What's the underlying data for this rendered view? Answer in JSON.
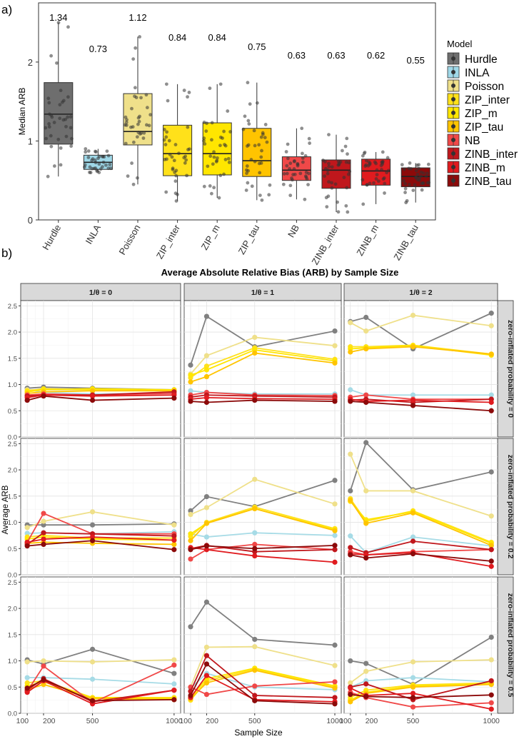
{
  "panel_a_label": "a)",
  "panel_b_label": "b)",
  "chart_data": [
    {
      "type": "box",
      "ylabel": "Median ARB",
      "ylim": [
        0,
        2.75
      ],
      "yticks": [
        0,
        1,
        2
      ],
      "legend_title": "Model",
      "legend_placement": "right",
      "grid": false,
      "categories": [
        "Hurdle",
        "INLA",
        "Poisson",
        "ZIP_inter",
        "ZIP_m",
        "ZIP_tau",
        "NB",
        "ZINB_inter",
        "ZINB_m",
        "ZINB_tau"
      ],
      "colors": [
        "#6e6e6e",
        "#9fd8e8",
        "#efe08a",
        "#ffe11a",
        "#ffe600",
        "#ffc400",
        "#f04848",
        "#c0171c",
        "#e01b1f",
        "#8c0a0a"
      ],
      "annotations": [
        "1.34",
        "0.73",
        "1.12",
        "0.84",
        "0.84",
        "0.75",
        "0.63",
        "0.63",
        "0.62",
        "0.55"
      ],
      "box_stats": [
        {
          "min": 0.55,
          "q1": 0.96,
          "median": 1.34,
          "q3": 1.74,
          "max": 2.5
        },
        {
          "min": 0.6,
          "q1": 0.64,
          "median": 0.73,
          "q3": 0.82,
          "max": 0.9
        },
        {
          "min": 0.45,
          "q1": 0.95,
          "median": 1.12,
          "q3": 1.6,
          "max": 2.32
        },
        {
          "min": 0.24,
          "q1": 0.56,
          "median": 0.84,
          "q3": 1.2,
          "max": 1.72
        },
        {
          "min": 0.28,
          "q1": 0.57,
          "median": 0.84,
          "q3": 1.23,
          "max": 1.72
        },
        {
          "min": 0.25,
          "q1": 0.55,
          "median": 0.75,
          "q3": 1.16,
          "max": 1.74
        },
        {
          "min": 0.26,
          "q1": 0.5,
          "median": 0.63,
          "q3": 0.8,
          "max": 1.16
        },
        {
          "min": 0.1,
          "q1": 0.4,
          "median": 0.63,
          "q3": 0.76,
          "max": 1.08
        },
        {
          "min": 0.2,
          "q1": 0.44,
          "median": 0.62,
          "q3": 0.77,
          "max": 0.86
        },
        {
          "min": 0.22,
          "q1": 0.42,
          "median": 0.55,
          "q3": 0.66,
          "max": 0.72
        }
      ]
    },
    {
      "type": "line",
      "title": "Average Absolute Relative Bias (ARB) by Sample Size",
      "xlabel": "Sample Size",
      "ylabel": "Average ARB",
      "x": [
        100,
        200,
        500,
        1000
      ],
      "xticks": [
        100,
        200,
        500,
        1000
      ],
      "yticks": [
        0.0,
        0.5,
        1.0,
        1.5,
        2.0,
        2.5
      ],
      "yticklabels": [
        "0.0",
        "0.5",
        "1.0",
        "1.5",
        "2.0",
        "2.5"
      ],
      "ylim": [
        0,
        2.6
      ],
      "grid": true,
      "col_labels": [
        "1/θ = 0",
        "1/θ = 1",
        "1/θ = 2"
      ],
      "row_labels": [
        "zero-inflated probability = 0",
        "zero-inflated probability = 0.2",
        "zero-inflated probability = 0.5"
      ],
      "series_colors": [
        "#808080",
        "#a6dbe6",
        "#efe08a",
        "#ffe11a",
        "#ffe600",
        "#ffc400",
        "#f04848",
        "#c0171c",
        "#e01b1f",
        "#8c0a0a"
      ],
      "panels": [
        [
          [
            [
              0.93,
              0.95,
              0.93,
              0.9
            ],
            [
              0.9,
              0.85,
              0.82,
              0.83
            ],
            [
              0.9,
              0.9,
              0.9,
              0.88
            ],
            [
              0.88,
              0.92,
              0.9,
              0.88
            ],
            [
              0.86,
              0.9,
              0.92,
              0.9
            ],
            [
              0.83,
              0.86,
              0.88,
              0.88
            ],
            [
              0.8,
              0.82,
              0.8,
              0.83
            ],
            [
              0.78,
              0.8,
              0.8,
              0.86
            ],
            [
              0.75,
              0.8,
              0.78,
              0.8
            ],
            [
              0.7,
              0.78,
              0.7,
              0.74
            ]
          ],
          [
            [
              1.37,
              2.3,
              1.72,
              2.02
            ],
            [
              0.88,
              0.85,
              0.82,
              0.82
            ],
            [
              1.2,
              1.55,
              1.9,
              1.74
            ],
            [
              1.13,
              1.35,
              1.7,
              1.48
            ],
            [
              1.18,
              1.28,
              1.66,
              1.45
            ],
            [
              1.05,
              1.15,
              1.6,
              1.41
            ],
            [
              0.8,
              0.85,
              0.8,
              0.79
            ],
            [
              0.76,
              0.8,
              0.78,
              0.76
            ],
            [
              0.72,
              0.75,
              0.73,
              0.72
            ],
            [
              0.68,
              0.66,
              0.7,
              0.68
            ]
          ],
          [
            [
              2.2,
              2.28,
              1.68,
              2.36
            ],
            [
              0.9,
              0.8,
              0.8,
              0.8
            ],
            [
              2.18,
              2.02,
              2.32,
              2.12
            ],
            [
              1.72,
              1.72,
              1.75,
              1.58
            ],
            [
              1.68,
              1.7,
              1.74,
              1.56
            ],
            [
              1.62,
              1.68,
              1.72,
              1.58
            ],
            [
              0.76,
              0.8,
              0.72,
              0.72
            ],
            [
              0.7,
              0.72,
              0.66,
              0.72
            ],
            [
              0.72,
              0.68,
              0.7,
              0.66
            ],
            [
              0.68,
              0.66,
              0.6,
              0.5
            ]
          ]
        ],
        [
          [
            [
              0.95,
              0.95,
              0.95,
              0.97
            ],
            [
              0.79,
              0.8,
              0.78,
              0.82
            ],
            [
              0.9,
              1.02,
              1.2,
              0.95
            ],
            [
              0.72,
              0.75,
              0.7,
              0.7
            ],
            [
              0.68,
              0.72,
              0.68,
              0.66
            ],
            [
              0.6,
              0.62,
              0.6,
              0.58
            ],
            [
              0.62,
              1.17,
              0.78,
              0.78
            ],
            [
              0.58,
              0.8,
              0.78,
              0.74
            ],
            [
              0.62,
              0.68,
              0.72,
              0.66
            ],
            [
              0.55,
              0.58,
              0.65,
              0.48
            ]
          ],
          [
            [
              1.22,
              1.49,
              1.3,
              1.8
            ],
            [
              0.78,
              0.72,
              0.8,
              0.75
            ],
            [
              1.15,
              1.28,
              1.82,
              1.35
            ],
            [
              0.73,
              1.0,
              1.29,
              0.88
            ],
            [
              0.78,
              0.98,
              1.26,
              0.86
            ],
            [
              0.65,
              0.98,
              1.26,
              0.84
            ],
            [
              0.3,
              0.48,
              0.58,
              0.48
            ],
            [
              0.5,
              0.56,
              0.44,
              0.48
            ],
            [
              0.52,
              0.48,
              0.36,
              0.24
            ],
            [
              0.48,
              0.55,
              0.5,
              0.56
            ]
          ],
          [
            [
              1.6,
              2.52,
              1.62,
              1.96
            ],
            [
              0.74,
              0.42,
              0.72,
              0.55
            ],
            [
              2.3,
              1.6,
              1.6,
              1.12
            ],
            [
              1.45,
              1.02,
              1.22,
              0.62
            ],
            [
              1.4,
              1.05,
              1.2,
              0.6
            ],
            [
              1.42,
              0.98,
              1.18,
              0.56
            ],
            [
              0.44,
              0.38,
              0.44,
              0.48
            ],
            [
              0.52,
              0.42,
              0.64,
              0.48
            ],
            [
              0.4,
              0.38,
              0.42,
              0.16
            ],
            [
              0.38,
              0.32,
              0.4,
              0.26
            ]
          ]
        ],
        [
          [
            [
              1.02,
              0.94,
              1.22,
              0.76
            ],
            [
              0.68,
              0.68,
              0.65,
              0.56
            ],
            [
              0.98,
              1.0,
              0.98,
              1.02
            ],
            [
              0.58,
              0.62,
              0.3,
              0.3
            ],
            [
              0.52,
              0.6,
              0.3,
              0.28
            ],
            [
              0.45,
              0.55,
              0.28,
              0.26
            ],
            [
              0.42,
              0.9,
              0.2,
              0.92
            ],
            [
              0.44,
              0.66,
              0.22,
              0.44
            ],
            [
              0.4,
              0.62,
              0.18,
              0.44
            ],
            [
              0.48,
              0.64,
              0.24,
              0.26
            ]
          ],
          [
            [
              1.65,
              2.12,
              1.41,
              1.3
            ],
            [
              0.48,
              0.76,
              0.5,
              0.45
            ],
            [
              0.5,
              1.26,
              1.27,
              0.91
            ],
            [
              0.25,
              0.62,
              0.84,
              0.5
            ],
            [
              0.3,
              0.66,
              0.86,
              0.52
            ],
            [
              0.28,
              0.58,
              0.82,
              0.48
            ],
            [
              0.5,
              0.36,
              0.52,
              0.6
            ],
            [
              0.42,
              1.1,
              0.34,
              0.3
            ],
            [
              0.3,
              0.72,
              0.26,
              0.22
            ],
            [
              0.34,
              0.94,
              0.24,
              0.18
            ]
          ],
          [
            [
              1.0,
              0.95,
              0.55,
              1.45
            ],
            [
              0.5,
              0.62,
              0.68,
              0.6
            ],
            [
              0.58,
              0.8,
              0.98,
              1.02
            ],
            [
              0.3,
              0.44,
              0.54,
              0.58
            ],
            [
              0.25,
              0.4,
              0.52,
              0.56
            ],
            [
              0.22,
              0.38,
              0.5,
              0.55
            ],
            [
              0.4,
              0.3,
              0.12,
              0.2
            ],
            [
              0.5,
              0.56,
              0.26,
              0.62
            ],
            [
              0.48,
              0.34,
              0.38,
              0.08
            ],
            [
              0.36,
              0.32,
              0.3,
              0.35
            ]
          ]
        ]
      ]
    }
  ]
}
